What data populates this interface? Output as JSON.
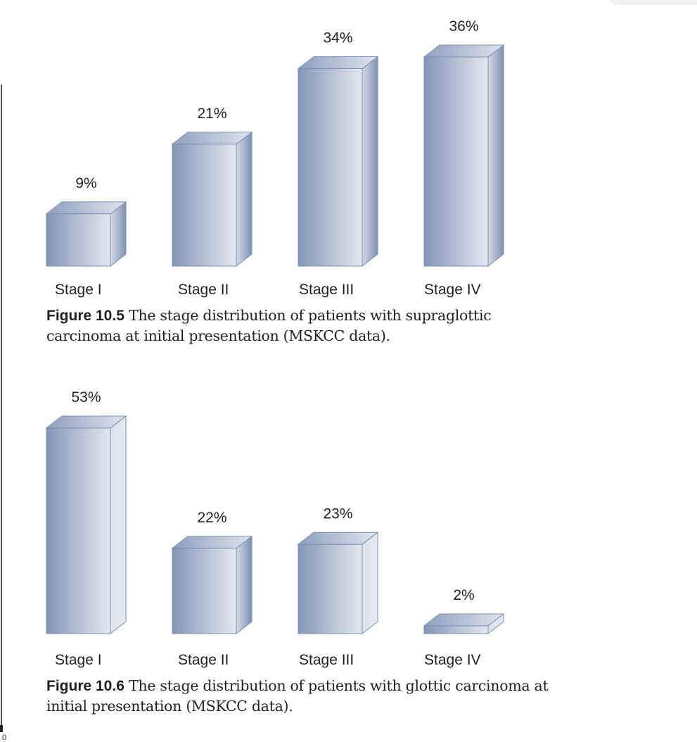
{
  "page": {
    "folio_fragment": "0"
  },
  "colors": {
    "bar_front_dark": "#8396b6",
    "bar_front_light": "#e4e8f0",
    "bar_side_dark": "#7f92b3",
    "bar_side_light": "#e6e9f0",
    "bar_edge": "#7b8fb3",
    "text": "#231f20"
  },
  "figures": [
    {
      "id": "figure-10-5",
      "caption_label": "Figure 10.5",
      "caption_line1": "The stage distribution of patients with supraglottic",
      "caption_line2": "carcinoma at initial presentation (MSKCC data)."
    },
    {
      "id": "figure-10-6",
      "caption_label": "Figure 10.6",
      "caption_line1": "The stage distribution of patients with glottic carcinoma at",
      "caption_line2": "initial presentation (MSKCC data)."
    }
  ],
  "chart_data": [
    {
      "type": "bar",
      "title": "Figure 10.5 The stage distribution of patients with supraglottic carcinoma at initial presentation (MSKCC data).",
      "categories": [
        "Stage I",
        "Stage II",
        "Stage III",
        "Stage IV"
      ],
      "values": [
        9,
        21,
        34,
        36
      ],
      "value_labels": [
        "9%",
        "21%",
        "34%",
        "36%"
      ],
      "xlabel": "",
      "ylabel": "",
      "unit": "%",
      "style": "3d-bar",
      "grid": false,
      "legend": null
    },
    {
      "type": "bar",
      "title": "Figure 10.6 The stage distribution of patients with glottic carcinoma at initial presentation (MSKCC data).",
      "categories": [
        "Stage I",
        "Stage II",
        "Stage III",
        "Stage IV"
      ],
      "values": [
        53,
        22,
        23,
        2
      ],
      "value_labels": [
        "53%",
        "22%",
        "23%",
        "2%"
      ],
      "xlabel": "",
      "ylabel": "",
      "unit": "%",
      "style": "3d-bar",
      "grid": false,
      "legend": null
    }
  ]
}
